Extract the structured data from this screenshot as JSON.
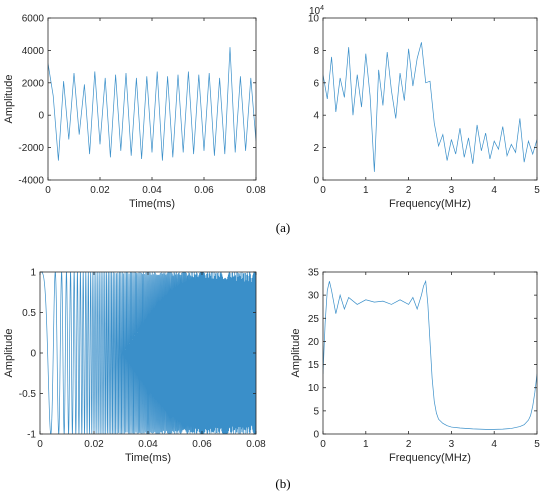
{
  "captions": [
    "(a)",
    "(b)"
  ],
  "colors": {
    "trace": "#3a8fc9",
    "axis": "#262626"
  },
  "chart_data": [
    {
      "type": "line",
      "xlabel": "Time(ms)",
      "ylabel": "Amplitude",
      "xlim": [
        0,
        0.08
      ],
      "ylim": [
        -4000,
        6000
      ],
      "xticks": [
        0,
        0.02,
        0.04,
        0.06,
        0.08
      ],
      "xtick_labels": [
        "0",
        "0.02",
        "0.04",
        "0.06",
        "0.08"
      ],
      "yticks": [
        -4000,
        -2000,
        0,
        2000,
        4000,
        6000
      ],
      "ytick_labels": [
        "-4000",
        "-2000",
        "0",
        "2000",
        "4000",
        "6000"
      ],
      "series": [
        {
          "x": [
            0,
            0.002,
            0.004,
            0.006,
            0.008,
            0.01,
            0.012,
            0.014,
            0.016,
            0.018,
            0.02,
            0.022,
            0.024,
            0.026,
            0.028,
            0.03,
            0.032,
            0.034,
            0.036,
            0.038,
            0.04,
            0.042,
            0.044,
            0.046,
            0.048,
            0.05,
            0.052,
            0.054,
            0.056,
            0.058,
            0.06,
            0.062,
            0.064,
            0.066,
            0.068,
            0.07,
            0.072,
            0.074,
            0.076,
            0.078,
            0.08
          ],
          "y": [
            3200,
            1200,
            -2800,
            2100,
            -1500,
            2600,
            -1200,
            1900,
            -2400,
            2700,
            -1800,
            2300,
            -2600,
            2500,
            -2200,
            2600,
            -2500,
            2300,
            -2700,
            2400,
            -2300,
            2700,
            -2800,
            2400,
            -2600,
            2500,
            -2300,
            2700,
            -2400,
            2500,
            -2200,
            2600,
            -2500,
            2300,
            -2400,
            4200,
            -2300,
            2400,
            -2200,
            2300,
            -1600
          ]
        }
      ]
    },
    {
      "type": "line",
      "xlabel": "Frequency(MHz)",
      "ylabel": "",
      "xlim": [
        0,
        5
      ],
      "ylim": [
        0,
        10
      ],
      "exponent_label": "10",
      "exponent_power": "4",
      "xticks": [
        0,
        1,
        2,
        3,
        4,
        5
      ],
      "xtick_labels": [
        "0",
        "1",
        "2",
        "3",
        "4",
        "5"
      ],
      "yticks": [
        0,
        2,
        4,
        6,
        8,
        10
      ],
      "ytick_labels": [
        "0",
        "2",
        "4",
        "6",
        "8",
        "10"
      ],
      "series": [
        {
          "x": [
            0,
            0.1,
            0.2,
            0.3,
            0.4,
            0.5,
            0.6,
            0.7,
            0.8,
            0.9,
            1.0,
            1.1,
            1.2,
            1.3,
            1.4,
            1.5,
            1.6,
            1.7,
            1.8,
            1.9,
            2.0,
            2.1,
            2.2,
            2.3,
            2.4,
            2.5,
            2.6,
            2.7,
            2.8,
            2.9,
            3.0,
            3.1,
            3.2,
            3.3,
            3.4,
            3.5,
            3.6,
            3.7,
            3.8,
            3.9,
            4.0,
            4.1,
            4.2,
            4.3,
            4.4,
            4.5,
            4.6,
            4.7,
            4.8,
            4.9,
            5.0
          ],
          "y": [
            6.5,
            5.0,
            7.6,
            4.2,
            6.3,
            5.1,
            8.2,
            4.0,
            6.5,
            4.5,
            7.8,
            5.2,
            0.5,
            6.8,
            4.6,
            7.9,
            5.5,
            3.8,
            6.6,
            4.9,
            8.1,
            5.8,
            7.5,
            8.5,
            6.0,
            6.1,
            3.5,
            2.1,
            2.8,
            1.2,
            2.5,
            1.6,
            3.2,
            1.4,
            2.6,
            1.0,
            3.4,
            1.8,
            2.9,
            1.3,
            2.4,
            1.9,
            3.3,
            1.5,
            2.2,
            1.7,
            3.8,
            1.1,
            2.4,
            1.6,
            2.5
          ]
        }
      ]
    },
    {
      "type": "line",
      "xlabel": "Time(ms)",
      "ylabel": "Amplitude",
      "xlim": [
        0,
        0.08
      ],
      "ylim": [
        -1,
        1
      ],
      "xticks": [
        0,
        0.02,
        0.04,
        0.06,
        0.08
      ],
      "xtick_labels": [
        "0",
        "0.02",
        "0.04",
        "0.06",
        "0.08"
      ],
      "yticks": [
        -1,
        -0.5,
        0,
        0.5,
        1
      ],
      "ytick_labels": [
        "-1",
        "-0.5",
        "0",
        "0.5",
        "1"
      ],
      "chirp": {
        "amplitude": 1,
        "f0_mhz": 0,
        "f1_mhz": 5,
        "duration_ms": 0.08
      }
    },
    {
      "type": "line",
      "xlabel": "Frequency(MHz)",
      "ylabel": "Amplitude",
      "xlim": [
        0,
        5
      ],
      "ylim": [
        0,
        35
      ],
      "xticks": [
        0,
        1,
        2,
        3,
        4,
        5
      ],
      "xtick_labels": [
        "0",
        "1",
        "2",
        "3",
        "4",
        "5"
      ],
      "yticks": [
        0,
        5,
        10,
        15,
        20,
        25,
        30,
        35
      ],
      "ytick_labels": [
        "0",
        "5",
        "10",
        "15",
        "20",
        "25",
        "30",
        "35"
      ],
      "series": [
        {
          "x": [
            0,
            0.05,
            0.1,
            0.15,
            0.2,
            0.3,
            0.4,
            0.5,
            0.6,
            0.8,
            1.0,
            1.2,
            1.4,
            1.6,
            1.8,
            2.0,
            2.1,
            2.2,
            2.3,
            2.35,
            2.4,
            2.45,
            2.5,
            2.55,
            2.6,
            2.65,
            2.7,
            2.8,
            2.9,
            3.0,
            3.2,
            3.5,
            3.8,
            4.0,
            4.2,
            4.4,
            4.6,
            4.7,
            4.8,
            4.85,
            4.9,
            4.95,
            5.0
          ],
          "y": [
            13,
            24,
            31,
            33,
            31,
            26,
            30,
            27,
            29.5,
            28,
            29,
            28.5,
            28.7,
            28,
            29,
            28,
            29.5,
            27,
            30,
            32,
            33,
            28,
            20,
            12,
            7,
            4.5,
            3.2,
            2.3,
            1.8,
            1.5,
            1.3,
            1.1,
            1.0,
            1.0,
            1.05,
            1.2,
            1.6,
            2.0,
            3.0,
            4.0,
            6.0,
            9.0,
            13
          ]
        }
      ]
    }
  ]
}
